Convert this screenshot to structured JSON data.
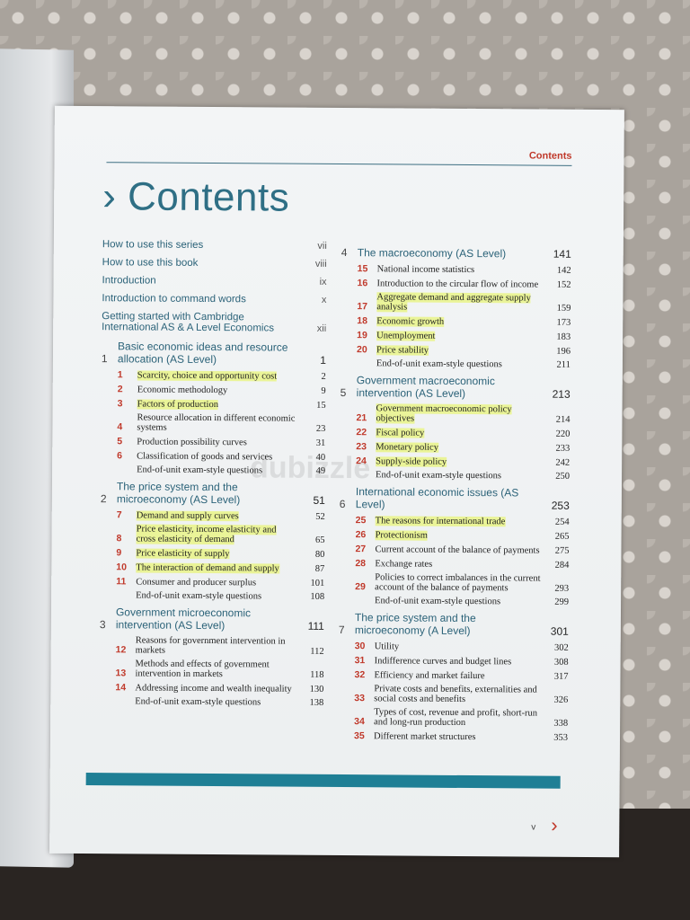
{
  "running_head": "Contents",
  "title": "Contents",
  "title_chevron": "›",
  "watermark": "dubizzle",
  "front_matter": [
    {
      "title": "How to use this series",
      "page": "vii"
    },
    {
      "title": "How to use this book",
      "page": "viii"
    },
    {
      "title": "Introduction",
      "page": "ix"
    },
    {
      "title": "Introduction to command words",
      "page": "x"
    },
    {
      "title": "Getting started with Cambridge International AS & A Level Economics",
      "page": "xii"
    }
  ],
  "units": [
    {
      "num": "1",
      "title": "Basic economic ideas and resource allocation (AS Level)",
      "page": "1",
      "chapters": [
        {
          "num": "1",
          "title": "Scarcity, choice and opportunity cost",
          "page": "2",
          "highlighted": true
        },
        {
          "num": "2",
          "title": "Economic methodology",
          "page": "9",
          "highlighted": false
        },
        {
          "num": "3",
          "title": "Factors of production",
          "page": "15",
          "highlighted": true
        },
        {
          "num": "4",
          "title": "Resource allocation in different economic systems",
          "page": "23",
          "highlighted": false
        },
        {
          "num": "5",
          "title": "Production possibility curves",
          "page": "31",
          "highlighted": false
        },
        {
          "num": "6",
          "title": "Classification of goods and services",
          "page": "40",
          "highlighted": false
        },
        {
          "num": "",
          "title": "End-of-unit exam-style questions",
          "page": "49",
          "highlighted": false
        }
      ]
    },
    {
      "num": "2",
      "title": "The price system and the microeconomy (AS Level)",
      "page": "51",
      "chapters": [
        {
          "num": "7",
          "title": "Demand and supply curves",
          "page": "52",
          "highlighted": true
        },
        {
          "num": "8",
          "title": "Price elasticity, income elasticity and cross elasticity of demand",
          "page": "65",
          "highlighted": true
        },
        {
          "num": "9",
          "title": "Price elasticity of supply",
          "page": "80",
          "highlighted": true
        },
        {
          "num": "10",
          "title": "The interaction of demand and supply",
          "page": "87",
          "highlighted": true
        },
        {
          "num": "11",
          "title": "Consumer and producer surplus",
          "page": "101",
          "highlighted": false
        },
        {
          "num": "",
          "title": "End-of-unit exam-style questions",
          "page": "108",
          "highlighted": false
        }
      ]
    },
    {
      "num": "3",
      "title": "Government microeconomic intervention (AS Level)",
      "page": "111",
      "chapters": [
        {
          "num": "12",
          "title": "Reasons for government intervention in markets",
          "page": "112",
          "highlighted": false
        },
        {
          "num": "13",
          "title": "Methods and effects of government intervention in markets",
          "page": "118",
          "highlighted": false
        },
        {
          "num": "14",
          "title": "Addressing income and wealth inequality",
          "page": "130",
          "highlighted": false
        },
        {
          "num": "",
          "title": "End-of-unit exam-style questions",
          "page": "138",
          "highlighted": false
        }
      ]
    },
    {
      "num": "4",
      "title": "The macroeconomy (AS Level)",
      "page": "141",
      "chapters": [
        {
          "num": "15",
          "title": "National income statistics",
          "page": "142",
          "highlighted": false
        },
        {
          "num": "16",
          "title": "Introduction to the circular flow of income",
          "page": "152",
          "highlighted": false
        },
        {
          "num": "17",
          "title": "Aggregate demand and aggregate supply analysis",
          "page": "159",
          "highlighted": true
        },
        {
          "num": "18",
          "title": "Economic growth",
          "page": "173",
          "highlighted": true
        },
        {
          "num": "19",
          "title": "Unemployment",
          "page": "183",
          "highlighted": true
        },
        {
          "num": "20",
          "title": "Price stability",
          "page": "196",
          "highlighted": true
        },
        {
          "num": "",
          "title": "End-of-unit exam-style questions",
          "page": "211",
          "highlighted": false
        }
      ]
    },
    {
      "num": "5",
      "title": "Government macroeconomic intervention (AS Level)",
      "page": "213",
      "chapters": [
        {
          "num": "21",
          "title": "Government macroeconomic policy objectives",
          "page": "214",
          "highlighted": true
        },
        {
          "num": "22",
          "title": "Fiscal policy",
          "page": "220",
          "highlighted": true
        },
        {
          "num": "23",
          "title": "Monetary policy",
          "page": "233",
          "highlighted": true
        },
        {
          "num": "24",
          "title": "Supply-side policy",
          "page": "242",
          "highlighted": true
        },
        {
          "num": "",
          "title": "End-of-unit exam-style questions",
          "page": "250",
          "highlighted": false
        }
      ]
    },
    {
      "num": "6",
      "title": "International economic issues (AS Level)",
      "page": "253",
      "chapters": [
        {
          "num": "25",
          "title": "The reasons for international trade",
          "page": "254",
          "highlighted": true
        },
        {
          "num": "26",
          "title": "Protectionism",
          "page": "265",
          "highlighted": true
        },
        {
          "num": "27",
          "title": "Current account of the balance of payments",
          "page": "275",
          "highlighted": false
        },
        {
          "num": "28",
          "title": "Exchange rates",
          "page": "284",
          "highlighted": false
        },
        {
          "num": "29",
          "title": "Policies to correct imbalances in the current account of the balance of payments",
          "page": "293",
          "highlighted": false
        },
        {
          "num": "",
          "title": "End-of-unit exam-style questions",
          "page": "299",
          "highlighted": false
        }
      ]
    },
    {
      "num": "7",
      "title": "The price system and the microeconomy (A Level)",
      "page": "301",
      "chapters": [
        {
          "num": "30",
          "title": "Utility",
          "page": "302",
          "highlighted": false
        },
        {
          "num": "31",
          "title": "Indifference curves and budget lines",
          "page": "308",
          "highlighted": false
        },
        {
          "num": "32",
          "title": "Efficiency and market failure",
          "page": "317",
          "highlighted": false
        },
        {
          "num": "33",
          "title": "Private costs and benefits, externalities and social costs and benefits",
          "page": "326",
          "highlighted": false
        },
        {
          "num": "34",
          "title": "Types of cost, revenue and profit, short-run and long-run production",
          "page": "338",
          "highlighted": false
        },
        {
          "num": "35",
          "title": "Different market structures",
          "page": "353",
          "highlighted": false
        }
      ]
    }
  ],
  "folio": "v",
  "next_chevron": "›"
}
